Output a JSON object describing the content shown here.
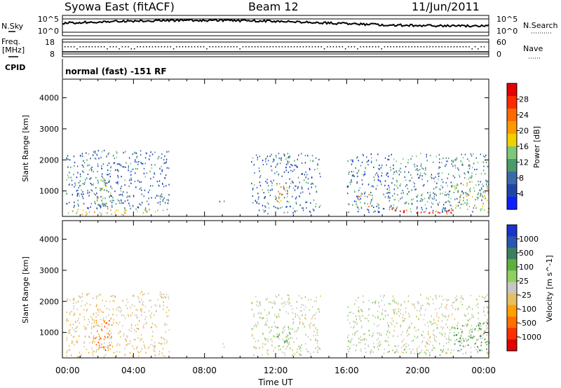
{
  "header": {
    "title": "Syowa East (fitACF)",
    "beam": "Beam 12",
    "date": "11/Jun/2011"
  },
  "noise_panel": {
    "left_label": "N.Sky",
    "right_label": "N.Search",
    "left_ticks": [
      "10^5",
      "10^0"
    ],
    "right_ticks": [
      "10^5",
      "10^0"
    ]
  },
  "freq_panel": {
    "left_label_1": "Freq.",
    "left_label_2": "[MHz]",
    "right_label": "Nave",
    "left_ticks": [
      "18",
      "8"
    ],
    "right_ticks": [
      "60",
      "0"
    ]
  },
  "cpid_panel": {
    "label": "CPID",
    "text": "normal (fast) -151 RF"
  },
  "x_axis": {
    "label": "Time UT",
    "ticks": [
      "00:00",
      "04:00",
      "08:00",
      "12:00",
      "16:00",
      "20:00",
      "00:00"
    ]
  },
  "colors": {
    "power_scale": [
      "#0b22ff",
      "#2244a8",
      "#3a6aa8",
      "#4a9a6a",
      "#7ec87a",
      "#f0d000",
      "#ff9a00",
      "#ff6a00",
      "#ff2a00",
      "#e60000"
    ],
    "velocity_scale": [
      "#1a33cc",
      "#2a55b0",
      "#3a8060",
      "#60b040",
      "#90d060",
      "#c8c8c0",
      "#e6c060",
      "#ffa000",
      "#ff7000",
      "#ff3000",
      "#e00000"
    ]
  },
  "chart_data": [
    {
      "type": "heatmap",
      "title": "",
      "xlabel": "Time UT",
      "ylabel": "Slant Range [km]",
      "x_range_hours": [
        0,
        24
      ],
      "ylim": [
        180,
        4600
      ],
      "yticks": [
        "4000",
        "3000",
        "2000",
        "1000"
      ],
      "colorbar": {
        "label": "Power [dB]",
        "range": [
          0,
          32
        ],
        "ticks": [
          "28",
          "24",
          "20",
          "16",
          "12",
          "8",
          "4"
        ]
      },
      "echo_regions": [
        {
          "t0": 0.2,
          "t1": 6.0,
          "r0": 200,
          "r1": 420,
          "level": 18
        },
        {
          "t0": 0.2,
          "t1": 6.0,
          "r0": 420,
          "r1": 2300,
          "level": 8
        },
        {
          "t0": 1.8,
          "t1": 2.8,
          "r0": 400,
          "r1": 1400,
          "level": 14
        },
        {
          "t0": 8.8,
          "t1": 9.1,
          "r0": 500,
          "r1": 800,
          "level": 8
        },
        {
          "t0": 10.6,
          "t1": 14.5,
          "r0": 250,
          "r1": 2200,
          "level": 8
        },
        {
          "t0": 12.0,
          "t1": 12.8,
          "r0": 600,
          "r1": 1200,
          "level": 18
        },
        {
          "t0": 16.0,
          "t1": 18.5,
          "r0": 300,
          "r1": 2200,
          "level": 8
        },
        {
          "t0": 16.5,
          "t1": 17.5,
          "r0": 400,
          "r1": 900,
          "level": 18
        },
        {
          "t0": 18.5,
          "t1": 22.0,
          "r0": 250,
          "r1": 450,
          "level": 28
        },
        {
          "t0": 18.5,
          "t1": 24.0,
          "r0": 300,
          "r1": 2200,
          "level": 10
        },
        {
          "t0": 22.0,
          "t1": 24.0,
          "r0": 400,
          "r1": 1300,
          "level": 16
        }
      ]
    },
    {
      "type": "heatmap",
      "title": "",
      "xlabel": "Time UT",
      "ylabel": "Slant Range [km]",
      "x_range_hours": [
        0,
        24
      ],
      "ylim": [
        180,
        4600
      ],
      "yticks": [
        "4000",
        "3000",
        "2000",
        "1000"
      ],
      "colorbar": {
        "label": "Velocity [m s^-1]",
        "range": [
          -1200,
          1200
        ],
        "ticks": [
          "1000",
          "500",
          "100",
          "25",
          "-25",
          "-100",
          "-500",
          "-1000"
        ]
      },
      "echo_regions": [
        {
          "t0": 0.2,
          "t1": 6.0,
          "r0": 200,
          "r1": 420,
          "level": -300
        },
        {
          "t0": 0.2,
          "t1": 6.0,
          "r0": 420,
          "r1": 2300,
          "level": -150
        },
        {
          "t0": 1.8,
          "t1": 2.8,
          "r0": 400,
          "r1": 1400,
          "level": -700
        },
        {
          "t0": 8.8,
          "t1": 9.1,
          "r0": 500,
          "r1": 800,
          "level": -80
        },
        {
          "t0": 10.6,
          "t1": 14.5,
          "r0": 250,
          "r1": 2200,
          "level": 60
        },
        {
          "t0": 12.0,
          "t1": 12.8,
          "r0": 600,
          "r1": 1200,
          "level": 400
        },
        {
          "t0": 16.0,
          "t1": 18.5,
          "r0": 300,
          "r1": 2200,
          "level": 120
        },
        {
          "t0": 18.5,
          "t1": 22.0,
          "r0": 250,
          "r1": 450,
          "level": 250
        },
        {
          "t0": 18.5,
          "t1": 24.0,
          "r0": 300,
          "r1": 2200,
          "level": 0
        },
        {
          "t0": 22.0,
          "t1": 24.0,
          "r0": 400,
          "r1": 1300,
          "level": 600
        }
      ]
    }
  ]
}
